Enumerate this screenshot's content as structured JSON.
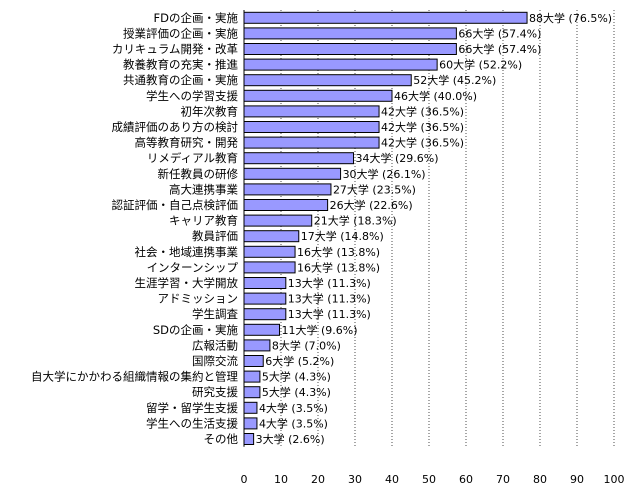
{
  "chart_data": {
    "type": "bar",
    "orientation": "horizontal",
    "categories": [
      "FDの企画・実施",
      "授業評価の企画・実施",
      "カリキュラム開発・改革",
      "教養教育の充実・推進",
      "共通教育の企画・実施",
      "学生への学習支援",
      "初年次教育",
      "成績評価のあり方の検討",
      "高等教育研究・開発",
      "リメディアル教育",
      "新任教員の研修",
      "高大連携事業",
      "認証評価・自己点検評価",
      "キャリア教育",
      "教員評価",
      "社会・地域連携事業",
      "インターンシップ",
      "生涯学習・大学開放",
      "アドミッション",
      "学生調査",
      "SDの企画・実施",
      "広報活動",
      "国際交流",
      "自大学にかかわる組織情報の集約と管理",
      "研究支援",
      "留学・留学生支援",
      "学生への生活支援",
      "その他"
    ],
    "values": [
      76.5,
      57.4,
      57.4,
      52.2,
      45.2,
      40.0,
      36.5,
      36.5,
      36.5,
      29.6,
      26.1,
      23.5,
      22.6,
      18.3,
      14.8,
      13.8,
      13.8,
      11.3,
      11.3,
      11.3,
      9.6,
      7.0,
      5.2,
      4.3,
      4.3,
      3.5,
      3.5,
      2.6
    ],
    "data_labels": [
      "88大学 (76.5%)",
      "66大学 (57.4%)",
      "66大学 (57.4%)",
      "60大学 (52.2%)",
      "52大学 (45.2%)",
      "46大学 (40.0%)",
      "42大学 (36.5%)",
      "42大学 (36.5%)",
      "42大学 (36.5%)",
      "34大学 (29.6%)",
      "30大学 (26.1%)",
      "27大学 (23.5%)",
      "26大学 (22.6%)",
      "21大学 (18.3%)",
      "17大学 (14.8%)",
      "16大学 (13.8%)",
      "16大学 (13.8%)",
      "13大学 (11.3%)",
      "13大学 (11.3%)",
      "13大学 (11.3%)",
      "11大学 (9.6%)",
      "8大学 (7.0%)",
      "6大学 (5.2%)",
      "5大学 (4.3%)",
      "5大学 (4.3%)",
      "4大学 (3.5%)",
      "4大学 (3.5%)",
      "3大学 (2.6%)"
    ],
    "xlim": [
      0,
      100
    ],
    "xticks": [
      "0",
      "10",
      "20",
      "30",
      "40",
      "50",
      "60",
      "70",
      "80",
      "90",
      "100"
    ],
    "grid": "vertical dashed",
    "bar_color": "#9999ff",
    "bar_edge_color": "#000000"
  }
}
